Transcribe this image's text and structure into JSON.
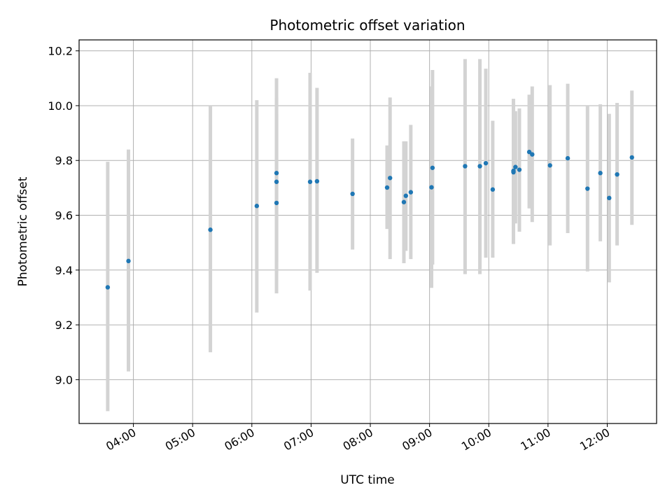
{
  "chart_data": {
    "type": "scatter",
    "title": "Photometric offset variation",
    "xlabel": "UTC time",
    "ylabel": "Photometric offset",
    "x_ticks": [
      "04:00",
      "05:00",
      "06:00",
      "07:00",
      "08:00",
      "09:00",
      "10:00",
      "11:00",
      "12:00"
    ],
    "x_range": [
      "03:05",
      "12:50"
    ],
    "y_ticks": [
      "9.0",
      "9.2",
      "9.4",
      "9.6",
      "9.8",
      "10.0",
      "10.2"
    ],
    "y_range": [
      8.84,
      10.24
    ],
    "grid": true,
    "colors": {
      "point": "#1f77b4",
      "errorbar": "#d3d3d3",
      "grid": "#b0b0b0"
    },
    "points": [
      {
        "x": "03:34",
        "y": 9.337,
        "ylow": 8.885,
        "yhigh": 9.795
      },
      {
        "x": "03:55",
        "y": 9.433,
        "ylow": 9.03,
        "yhigh": 9.84
      },
      {
        "x": "05:18",
        "y": 9.547,
        "ylow": 9.1,
        "yhigh": 10.0
      },
      {
        "x": "06:05",
        "y": 9.634,
        "ylow": 9.245,
        "yhigh": 10.02
      },
      {
        "x": "06:25",
        "y": 9.722,
        "ylow": 9.39,
        "yhigh": 10.03
      },
      {
        "x": "06:25",
        "y": 9.754,
        "ylow": 9.43,
        "yhigh": 10.1
      },
      {
        "x": "06:25",
        "y": 9.645,
        "ylow": 9.315,
        "yhigh": 9.97
      },
      {
        "x": "06:59",
        "y": 9.722,
        "ylow": 9.325,
        "yhigh": 10.12
      },
      {
        "x": "07:06",
        "y": 9.724,
        "ylow": 9.39,
        "yhigh": 10.065
      },
      {
        "x": "07:42",
        "y": 9.678,
        "ylow": 9.475,
        "yhigh": 9.88
      },
      {
        "x": "08:17",
        "y": 9.701,
        "ylow": 9.55,
        "yhigh": 9.855
      },
      {
        "x": "08:20",
        "y": 9.736,
        "ylow": 9.44,
        "yhigh": 10.03
      },
      {
        "x": "08:34",
        "y": 9.648,
        "ylow": 9.425,
        "yhigh": 9.87
      },
      {
        "x": "08:36",
        "y": 9.671,
        "ylow": 9.47,
        "yhigh": 9.87
      },
      {
        "x": "08:41",
        "y": 9.684,
        "ylow": 9.44,
        "yhigh": 9.93
      },
      {
        "x": "09:02",
        "y": 9.702,
        "ylow": 9.335,
        "yhigh": 10.07
      },
      {
        "x": "09:03",
        "y": 9.773,
        "ylow": 9.42,
        "yhigh": 10.13
      },
      {
        "x": "09:36",
        "y": 9.779,
        "ylow": 9.385,
        "yhigh": 10.17
      },
      {
        "x": "09:51",
        "y": 9.779,
        "ylow": 9.385,
        "yhigh": 10.17
      },
      {
        "x": "09:57",
        "y": 9.79,
        "ylow": 9.445,
        "yhigh": 10.135
      },
      {
        "x": "10:04",
        "y": 9.694,
        "ylow": 9.445,
        "yhigh": 9.945
      },
      {
        "x": "10:25",
        "y": 9.762,
        "ylow": 9.495,
        "yhigh": 10.025
      },
      {
        "x": "10:25",
        "y": 9.757,
        "ylow": 9.57,
        "yhigh": 9.99
      },
      {
        "x": "10:27",
        "y": 9.776,
        "ylow": 9.57,
        "yhigh": 9.98
      },
      {
        "x": "10:31",
        "y": 9.766,
        "ylow": 9.54,
        "yhigh": 9.99
      },
      {
        "x": "10:41",
        "y": 9.831,
        "ylow": 9.625,
        "yhigh": 10.04
      },
      {
        "x": "10:44",
        "y": 9.822,
        "ylow": 9.575,
        "yhigh": 10.07
      },
      {
        "x": "11:02",
        "y": 9.782,
        "ylow": 9.49,
        "yhigh": 10.075
      },
      {
        "x": "11:20",
        "y": 9.808,
        "ylow": 9.535,
        "yhigh": 10.08
      },
      {
        "x": "11:40",
        "y": 9.697,
        "ylow": 9.395,
        "yhigh": 10.0
      },
      {
        "x": "11:53",
        "y": 9.754,
        "ylow": 9.505,
        "yhigh": 10.005
      },
      {
        "x": "12:02",
        "y": 9.663,
        "ylow": 9.355,
        "yhigh": 9.97
      },
      {
        "x": "12:10",
        "y": 9.749,
        "ylow": 9.49,
        "yhigh": 10.01
      },
      {
        "x": "12:25",
        "y": 9.811,
        "ylow": 9.565,
        "yhigh": 10.055
      }
    ]
  }
}
